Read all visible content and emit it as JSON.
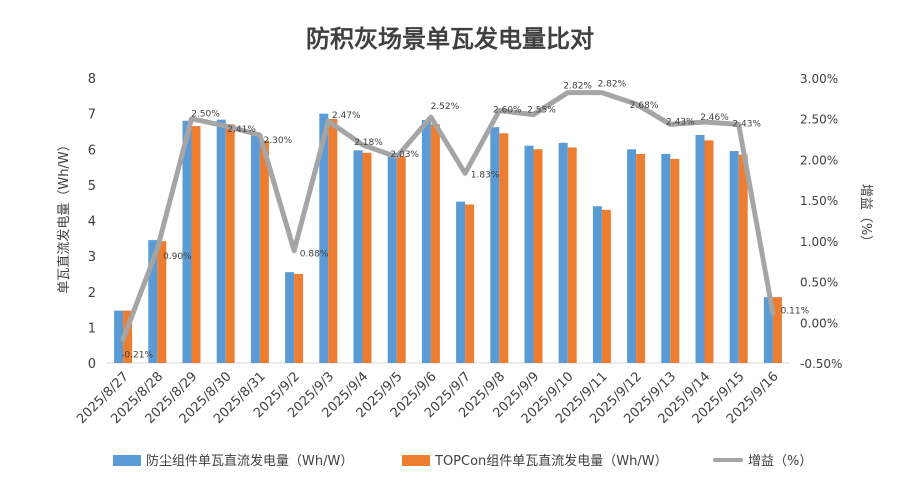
{
  "chart_data": {
    "type": "bar",
    "title": "防积灰场景单瓦发电量比对",
    "ylabel_left": "单瓦直流发电量（Wh/W）",
    "ylabel_right": "增益（%）",
    "categories": [
      "2025/8/27",
      "2025/8/28",
      "2025/8/29",
      "2025/8/30",
      "2025/8/31",
      "2025/9/2",
      "2025/9/3",
      "2025/9/4",
      "2025/9/5",
      "2025/9/6",
      "2025/9/7",
      "2025/9/8",
      "2025/9/9",
      "2025/9/10",
      "2025/9/11",
      "2025/9/12",
      "2025/9/13",
      "2025/9/14",
      "2025/9/15",
      "2025/9/16"
    ],
    "series": [
      {
        "name": "防尘组件单瓦直流发电量（Wh/W）",
        "type": "bar",
        "axis": "left",
        "values": [
          1.47,
          3.45,
          6.8,
          6.83,
          6.4,
          2.55,
          7.0,
          5.97,
          5.9,
          6.82,
          4.53,
          6.62,
          6.1,
          6.18,
          4.4,
          6.0,
          5.87,
          6.4,
          5.95,
          1.85
        ]
      },
      {
        "name": "TOPCon组件单瓦直流发电量（Wh/W）",
        "type": "bar",
        "axis": "left",
        "values": [
          1.47,
          3.42,
          6.65,
          6.7,
          6.24,
          2.5,
          6.85,
          5.9,
          5.8,
          6.7,
          4.45,
          6.45,
          6.0,
          6.05,
          4.3,
          5.87,
          5.73,
          6.25,
          5.85,
          1.85
        ]
      },
      {
        "name": "增益（%）",
        "type": "line",
        "axis": "right",
        "values": [
          -0.21,
          0.9,
          2.5,
          2.41,
          2.3,
          0.88,
          2.47,
          2.18,
          2.03,
          2.52,
          1.83,
          2.6,
          2.55,
          2.82,
          2.82,
          2.68,
          2.43,
          2.46,
          2.43,
          0.11
        ],
        "labels": [
          "-0.21%",
          "0.90%",
          "2.50%",
          "2.41%",
          "2.30%",
          "0.88%",
          "2.47%",
          "2.18%",
          "2.03%",
          "2.52%",
          "1.83%",
          "2.60%",
          "2.55%",
          "2.82%",
          "2.82%",
          "2.68%",
          "2.43%",
          "2.46%",
          "2.43%",
          "0.11%"
        ]
      }
    ],
    "ylim_left": [
      0,
      8
    ],
    "yticks_left": [
      "0",
      "1",
      "2",
      "3",
      "4",
      "5",
      "6",
      "7",
      "8"
    ],
    "ylim_right": [
      -0.5,
      3.0
    ],
    "yticks_right": [
      "-0.50%",
      "0.00%",
      "0.50%",
      "1.00%",
      "1.50%",
      "2.00%",
      "2.50%",
      "3.00%"
    ],
    "grid": false,
    "legend_position": "bottom",
    "colors": {
      "bar1": "#5B9BD5",
      "bar2": "#ED7D31",
      "line": "#A5A5A5",
      "text": "#404040"
    }
  }
}
